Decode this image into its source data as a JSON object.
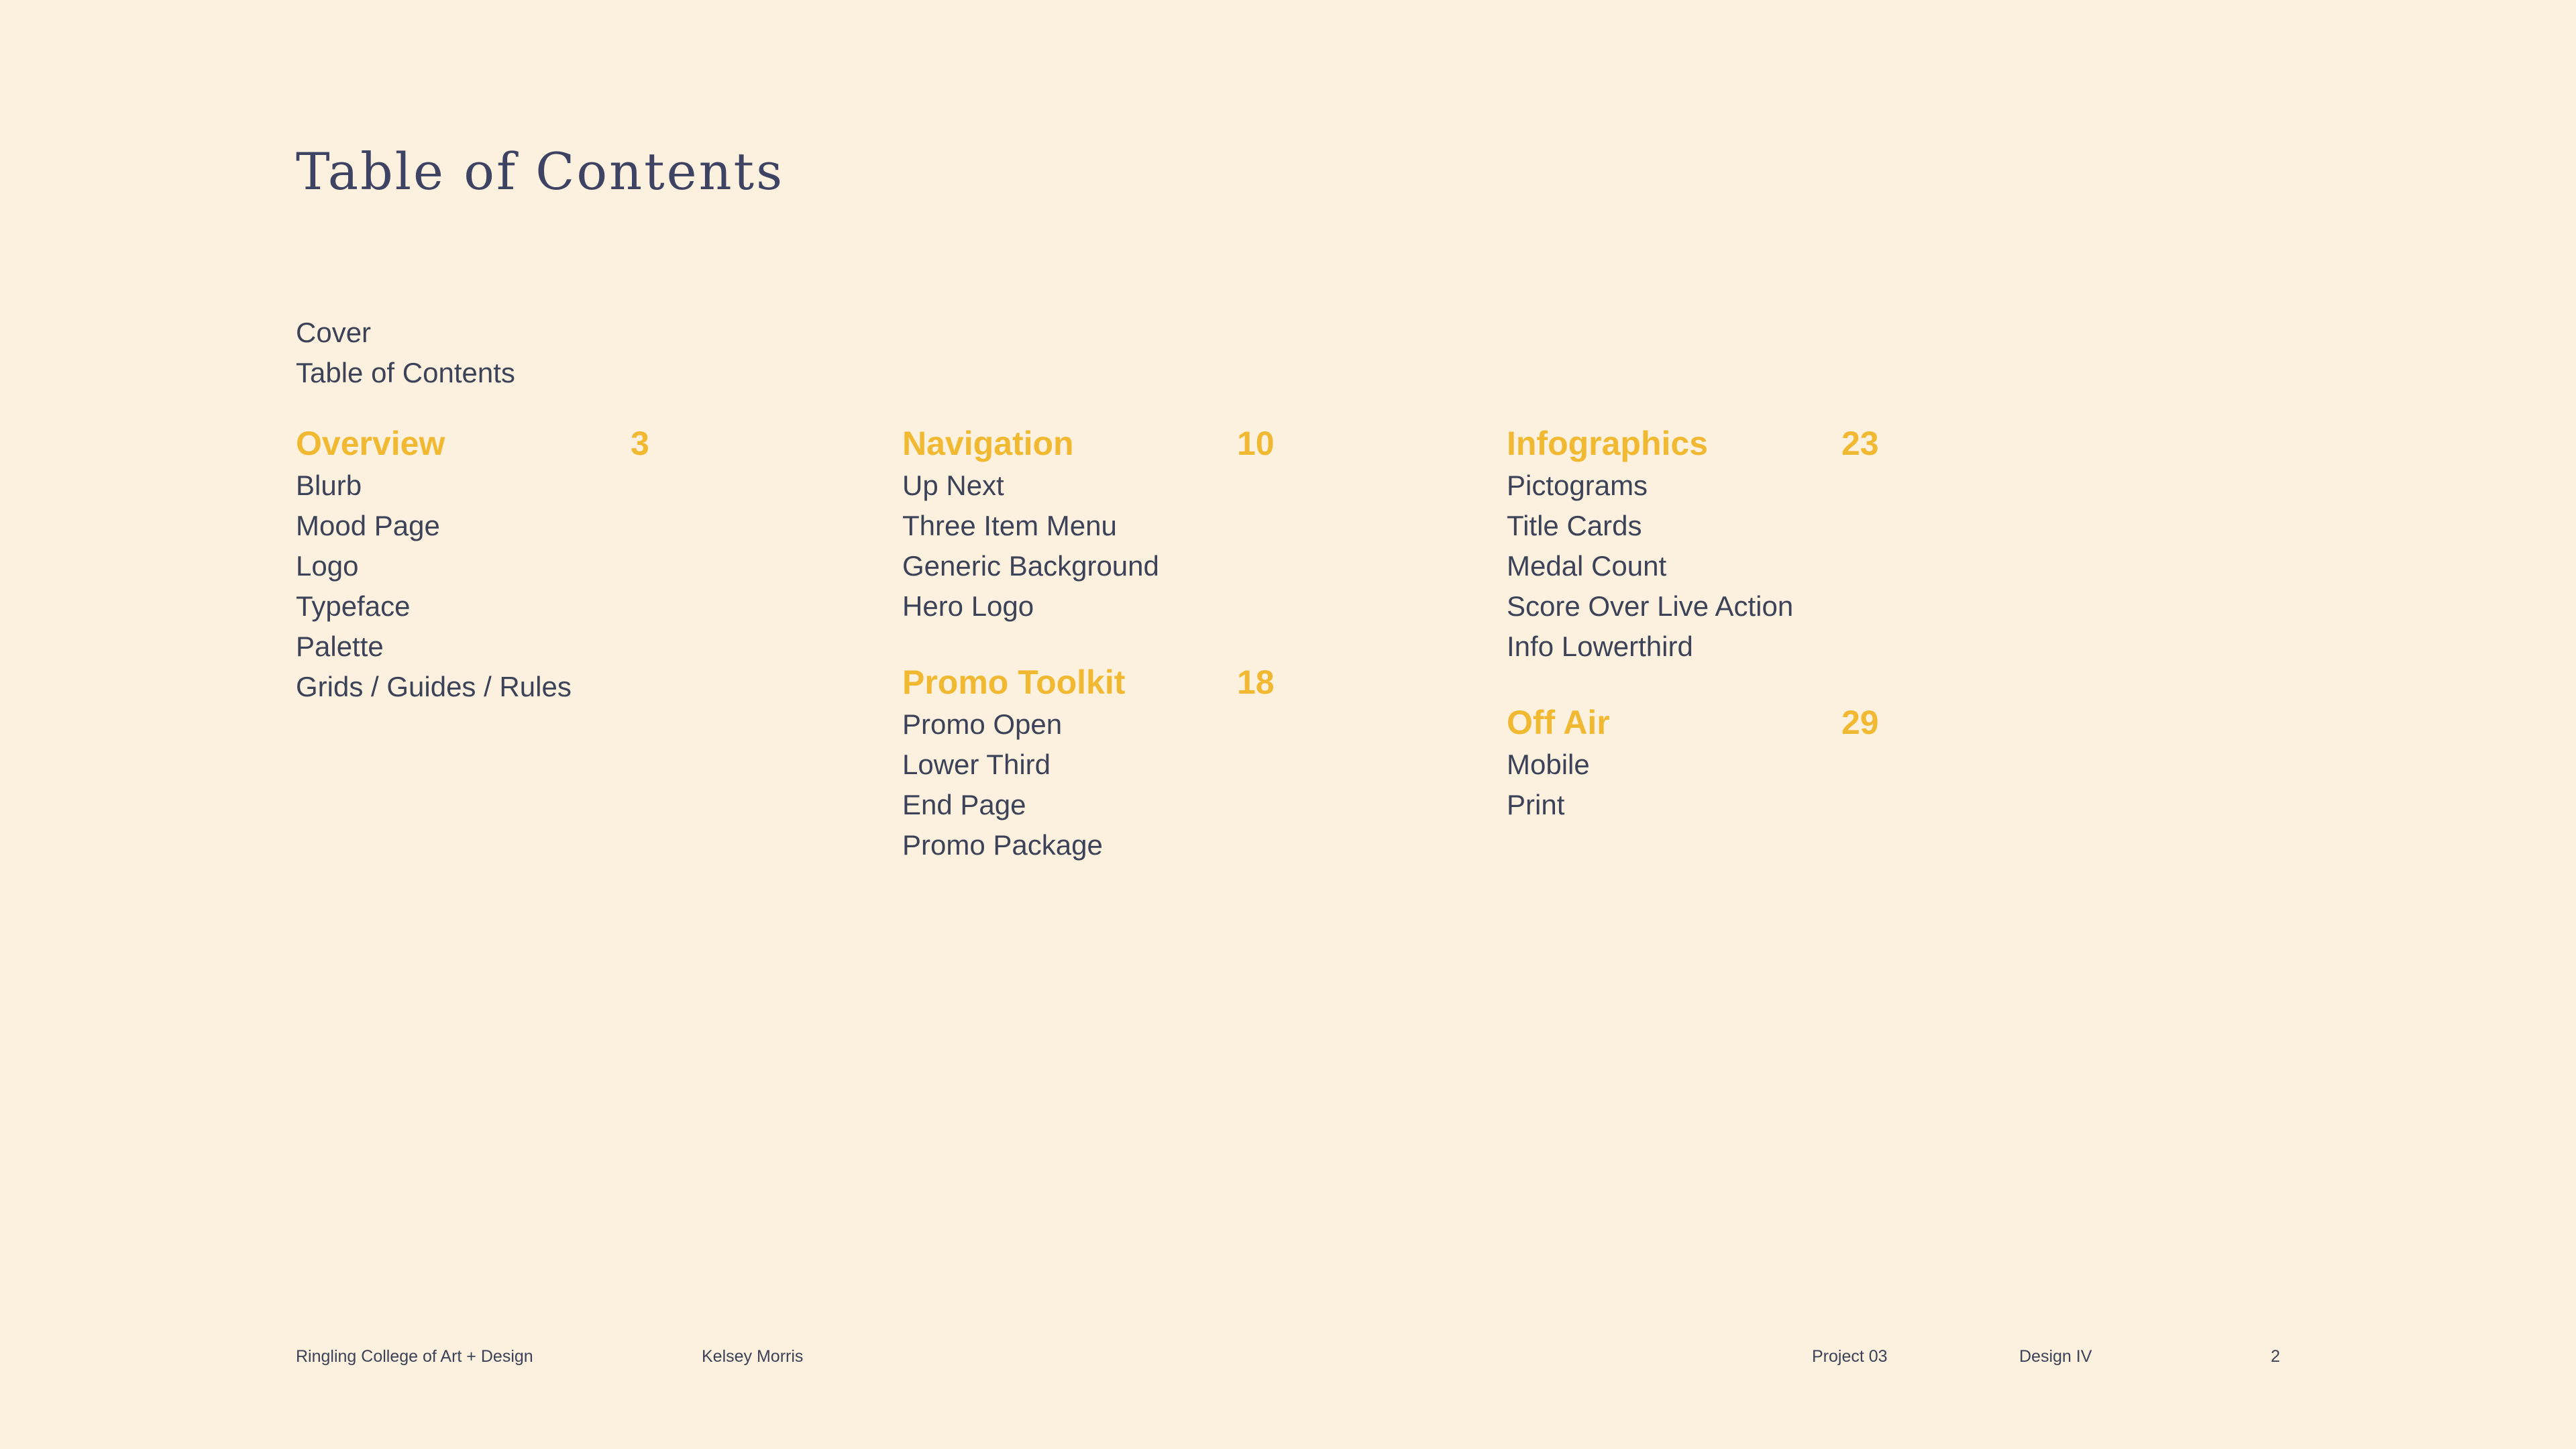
{
  "page": {
    "title": "Table of Contents",
    "colors": {
      "background": "#fcf1df",
      "text": "#3c4257",
      "title": "#3e4363",
      "accent": "#f0b931"
    }
  },
  "intro_items": {
    "cover": "Cover",
    "toc": "Table of Contents"
  },
  "columns": [
    {
      "sections": [
        {
          "title": "Overview",
          "page": "3",
          "items": [
            "Blurb",
            "Mood Page",
            "Logo",
            "Typeface",
            "Palette",
            "Grids / Guides / Rules"
          ]
        }
      ]
    },
    {
      "sections": [
        {
          "title": "Navigation",
          "page": "10",
          "items": [
            "Up Next",
            "Three Item Menu",
            "Generic Background",
            "Hero Logo"
          ]
        },
        {
          "title": "Promo Toolkit",
          "page": "18",
          "items": [
            "Promo Open",
            "Lower Third",
            "End Page",
            "Promo Package"
          ]
        }
      ]
    },
    {
      "sections": [
        {
          "title": "Infographics",
          "page": "23",
          "items": [
            "Pictograms",
            "Title Cards",
            "Medal Count",
            "Score Over Live Action",
            "Info Lowerthird"
          ]
        },
        {
          "title": "Off Air",
          "page": "29",
          "items": [
            "Mobile",
            "Print"
          ]
        }
      ]
    }
  ],
  "footer": {
    "school": "Ringling College of Art + Design",
    "author": "Kelsey Morris",
    "project": "Project 03",
    "course": "Design IV",
    "page_number": "2"
  }
}
